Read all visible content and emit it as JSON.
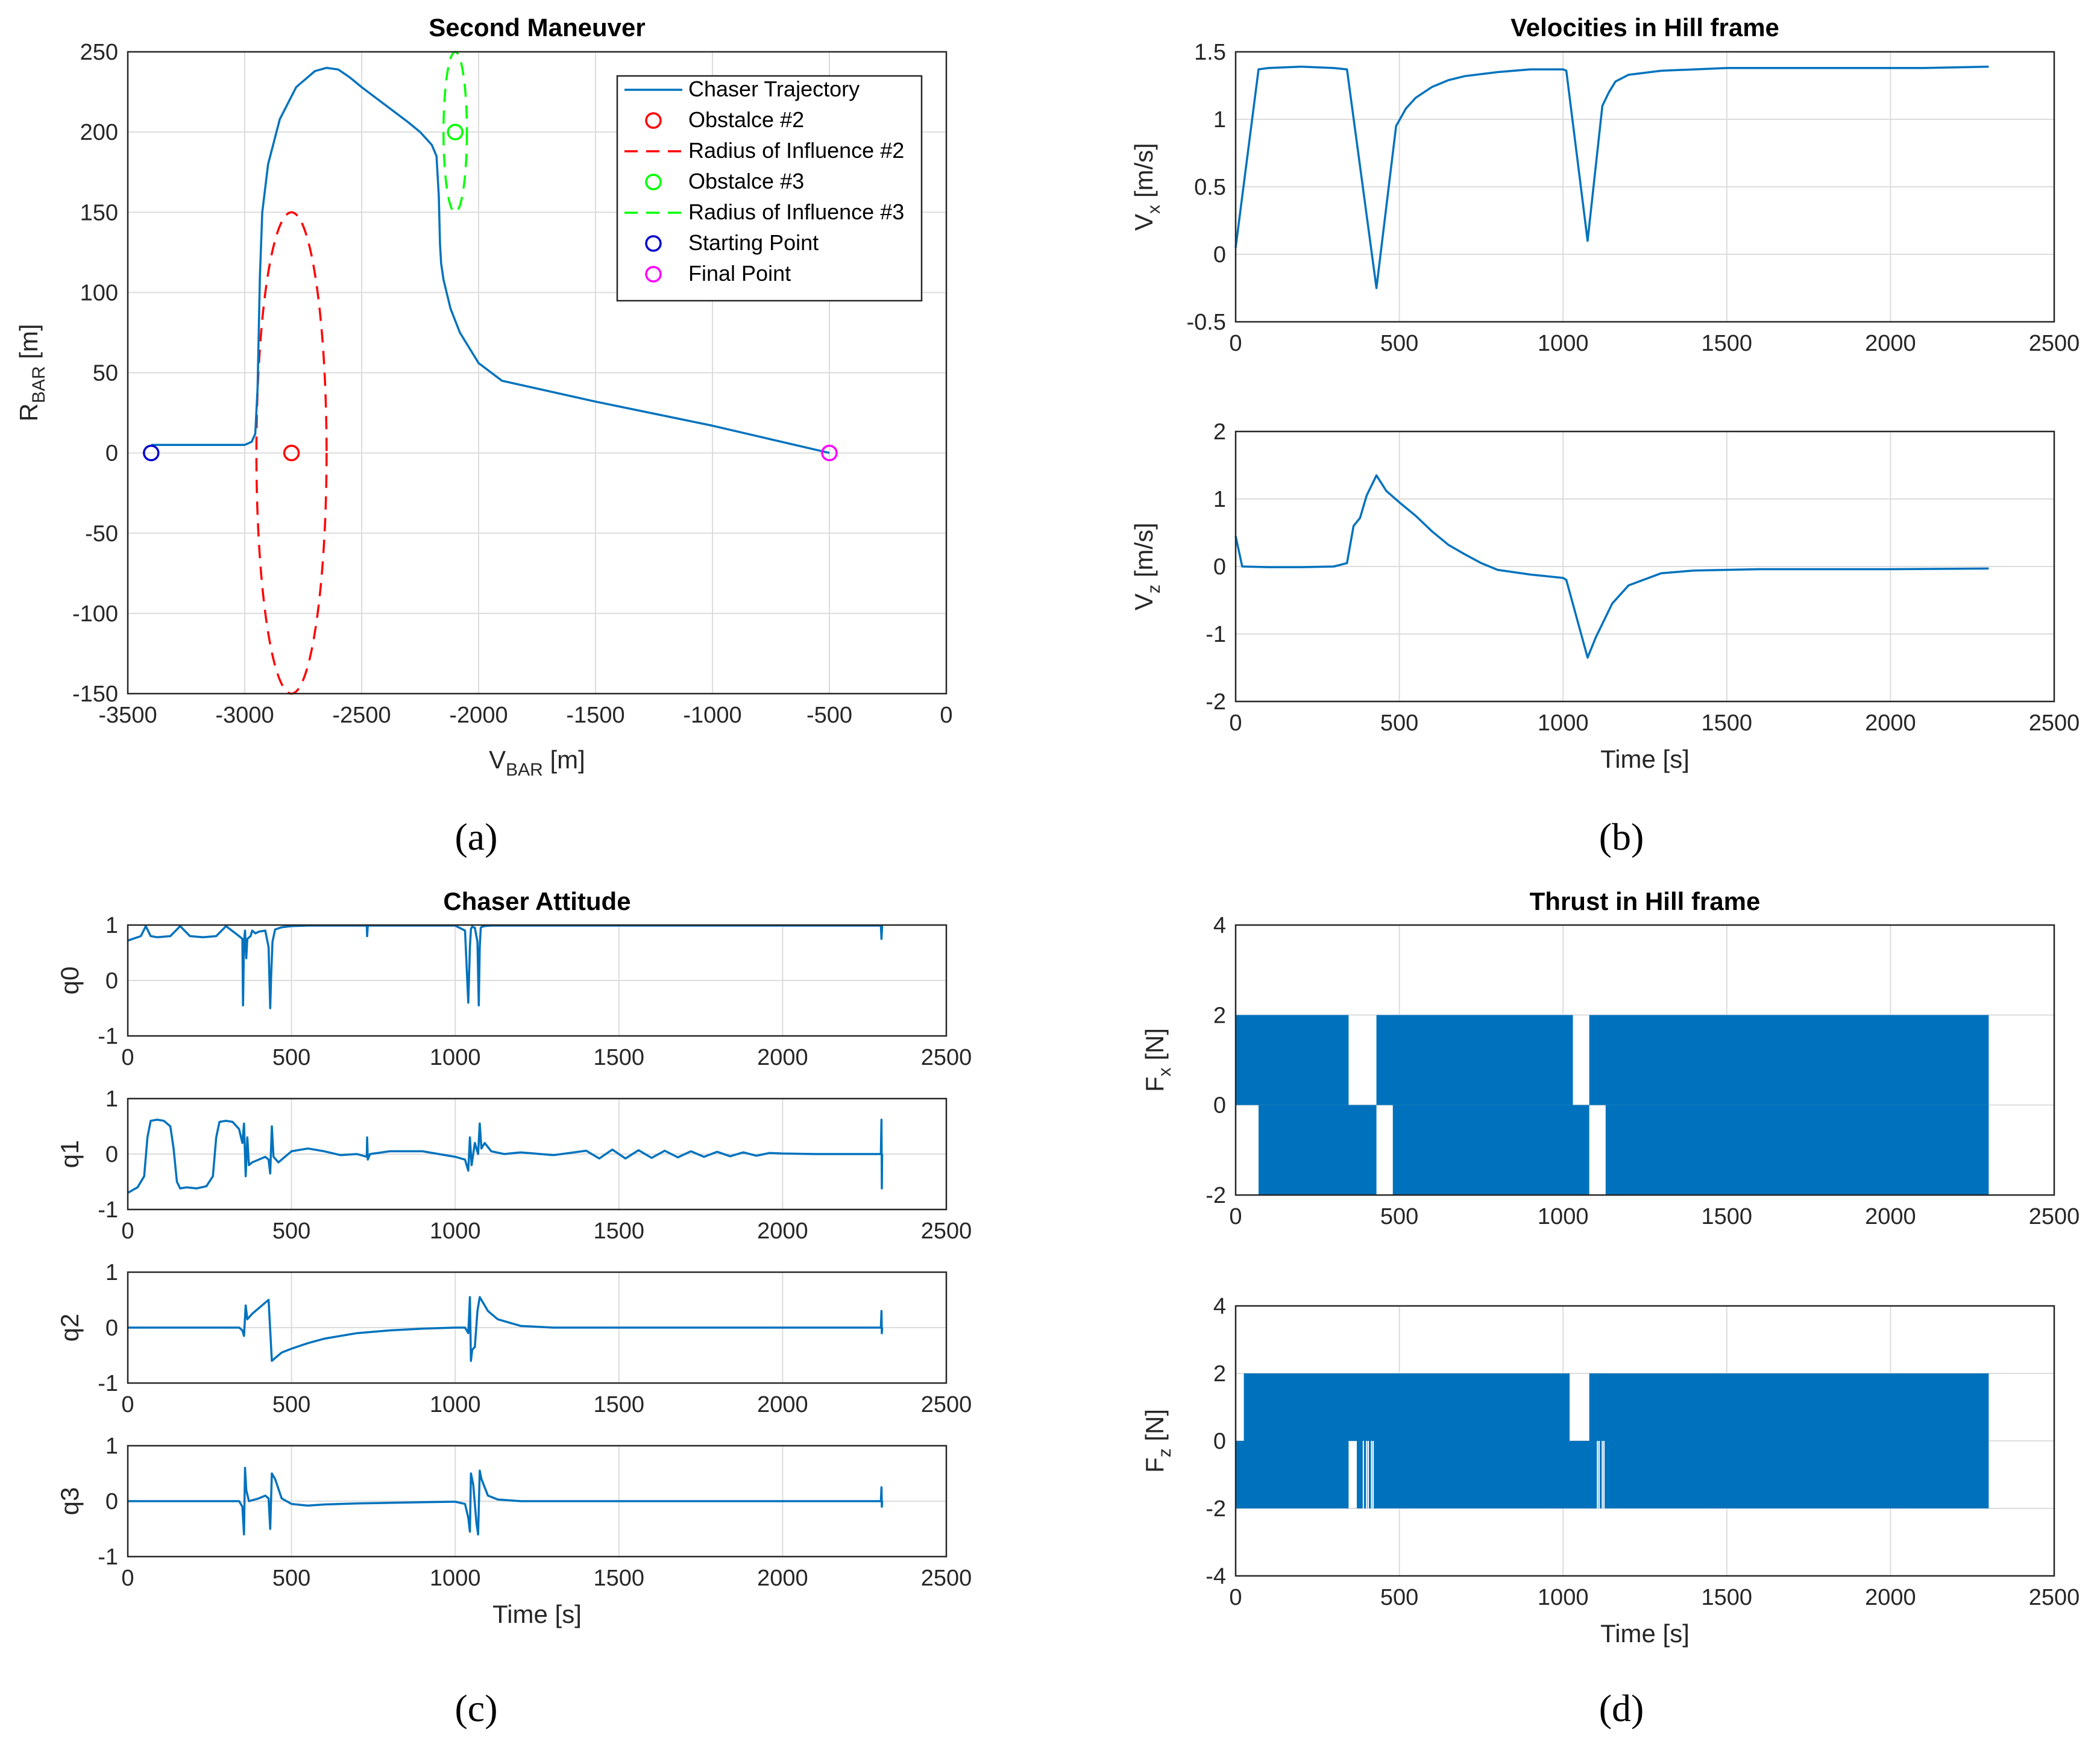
{
  "chart_data": [
    {
      "id": "a",
      "type": "line",
      "panel_label": "(a)",
      "title": "Second Maneuver",
      "xlabel": {
        "base": "V",
        "sub": "BAR",
        "unit": " [m]"
      },
      "ylabel": {
        "base": "R",
        "sub": "BAR",
        "unit": " [m]"
      },
      "xlim": [
        -3500,
        0
      ],
      "ylim": [
        -150,
        250
      ],
      "xticks": [
        -3500,
        -3000,
        -2500,
        -2000,
        -1500,
        -1000,
        -500,
        0
      ],
      "yticks": [
        -150,
        -100,
        -50,
        0,
        50,
        100,
        150,
        200,
        250
      ],
      "grid": true,
      "legend_placement": "top-right",
      "legend": [
        {
          "label": "Chaser Trajectory",
          "style": "line",
          "color": "#0072BD"
        },
        {
          "label": "Obstalce #2",
          "style": "circle",
          "color": "#FF0000"
        },
        {
          "label": "Radius of Influence #2",
          "style": "dash",
          "color": "#FF0000"
        },
        {
          "label": "Obstalce #3",
          "style": "circle",
          "color": "#00FF00"
        },
        {
          "label": "Radius of Influence #3",
          "style": "dash",
          "color": "#00FF00"
        },
        {
          "label": "Starting Point",
          "style": "circle",
          "color": "#0000CC"
        },
        {
          "label": "Final Point",
          "style": "circle",
          "color": "#FF00FF"
        }
      ],
      "trajectory": {
        "x": [
          -3400,
          -3200,
          -3000,
          -2970,
          -2955,
          -2945,
          -2935,
          -2925,
          -2900,
          -2850,
          -2780,
          -2700,
          -2650,
          -2600,
          -2550,
          -2500,
          -2400,
          -2300,
          -2250,
          -2200,
          -2180,
          -2170,
          -2165,
          -2160,
          -2150,
          -2120,
          -2080,
          -2000,
          -1900,
          -1500,
          -1000,
          -500
        ],
        "y": [
          5,
          5,
          5,
          7,
          12,
          40,
          110,
          150,
          180,
          208,
          228,
          238,
          240,
          239,
          234,
          228,
          217,
          206,
          200,
          192,
          185,
          160,
          130,
          118,
          108,
          90,
          75,
          56,
          45,
          32,
          17,
          0
        ]
      },
      "obstacles": [
        {
          "cx": -2800,
          "cy": 0,
          "rx": 150,
          "ry": 150,
          "color": "#FF0000"
        },
        {
          "cx": -2100,
          "cy": 200,
          "rx": 50,
          "ry": 50,
          "color": "#00FF00"
        }
      ],
      "start_point": {
        "x": -3400,
        "y": 0,
        "color": "#0000CC"
      },
      "final_point": {
        "x": -500,
        "y": 0,
        "color": "#FF00FF"
      }
    },
    {
      "id": "b",
      "type": "line",
      "panel_label": "(b)",
      "title": "Velocities in Hill frame",
      "subplots": [
        {
          "ylabel": {
            "base": "V",
            "sub": "x",
            "unit": " [m/s]"
          },
          "xlim": [
            0,
            2500
          ],
          "ylim": [
            -0.5,
            1.5
          ],
          "xticks": [
            0,
            500,
            1000,
            1500,
            2000,
            2500
          ],
          "yticks": [
            -0.5,
            0,
            0.5,
            1,
            1.5
          ],
          "x": [
            0,
            70,
            100,
            200,
            300,
            340,
            430,
            490,
            520,
            550,
            600,
            650,
            700,
            800,
            900,
            1000,
            1010,
            1075,
            1120,
            1140,
            1160,
            1200,
            1300,
            1500,
            1800,
            2100,
            2300
          ],
          "y": [
            0.05,
            1.37,
            1.38,
            1.39,
            1.38,
            1.37,
            -0.25,
            0.95,
            1.08,
            1.16,
            1.24,
            1.29,
            1.32,
            1.35,
            1.37,
            1.37,
            1.36,
            0.1,
            1.1,
            1.2,
            1.28,
            1.33,
            1.36,
            1.38,
            1.38,
            1.38,
            1.39
          ]
        },
        {
          "ylabel": {
            "base": "V",
            "sub": "z",
            "unit": " [m/s]"
          },
          "xlim": [
            0,
            2500
          ],
          "ylim": [
            -2,
            2
          ],
          "xticks": [
            0,
            500,
            1000,
            1500,
            2000,
            2500
          ],
          "yticks": [
            -2,
            -1,
            0,
            1,
            2
          ],
          "xlabel": "Time [s]",
          "x": [
            0,
            20,
            100,
            200,
            300,
            340,
            360,
            380,
            400,
            430,
            460,
            500,
            550,
            600,
            650,
            700,
            750,
            800,
            900,
            1000,
            1010,
            1075,
            1100,
            1150,
            1200,
            1300,
            1400,
            1600,
            2000,
            2300
          ],
          "y": [
            0.45,
            0,
            -0.01,
            -0.01,
            0,
            0.05,
            0.6,
            0.72,
            1.05,
            1.35,
            1.12,
            0.95,
            0.75,
            0.52,
            0.32,
            0.18,
            0.05,
            -0.05,
            -0.12,
            -0.17,
            -0.2,
            -1.35,
            -1.05,
            -0.55,
            -0.28,
            -0.1,
            -0.06,
            -0.04,
            -0.04,
            -0.03
          ]
        }
      ]
    },
    {
      "id": "c",
      "type": "line",
      "panel_label": "(c)",
      "title": "Chaser Attitude",
      "xlabel": "Time [s]",
      "subplots": [
        {
          "ylabel": "q0",
          "xlim": [
            0,
            2500
          ],
          "ylim": [
            -1,
            1
          ],
          "xticks": [
            0,
            500,
            1000,
            1500,
            2000,
            2500
          ],
          "yticks": [
            -1,
            0,
            1
          ],
          "x": [
            0,
            40,
            55,
            70,
            90,
            130,
            160,
            190,
            230,
            270,
            300,
            340,
            350,
            352,
            355,
            358,
            362,
            365,
            375,
            380,
            390,
            400,
            420,
            430,
            435,
            438,
            442,
            450,
            470,
            500,
            550,
            600,
            700,
            730,
            731,
            733,
            740,
            800,
            900,
            1000,
            1030,
            1040,
            1045,
            1048,
            1052,
            1060,
            1068,
            1072,
            1075,
            1078,
            1082,
            1090,
            1110,
            1200,
            1500,
            2000,
            2300,
            2302,
            2304
          ],
          "y": [
            0.72,
            0.8,
            0.98,
            0.8,
            0.78,
            0.8,
            0.98,
            0.8,
            0.78,
            0.8,
            0.98,
            0.8,
            0.75,
            -0.45,
            0.7,
            0.9,
            0.4,
            0.75,
            0.8,
            0.9,
            0.85,
            0.88,
            0.9,
            0.6,
            -0.5,
            0.1,
            0.7,
            0.92,
            0.96,
            0.98,
            0.99,
            0.99,
            0.99,
            0.99,
            0.8,
            0.99,
            0.99,
            0.99,
            0.99,
            0.99,
            0.9,
            -0.4,
            0.6,
            0.93,
            0.97,
            0.95,
            0.7,
            -0.45,
            0.6,
            0.95,
            0.97,
            0.98,
            0.99,
            0.99,
            0.99,
            0.99,
            0.99,
            0.75,
            0.99
          ]
        },
        {
          "ylabel": "q1",
          "xlim": [
            0,
            2500
          ],
          "ylim": [
            -1,
            1
          ],
          "xticks": [
            0,
            500,
            1000,
            1500,
            2000,
            2500
          ],
          "yticks": [
            -1,
            0,
            1
          ],
          "x": [
            0,
            30,
            50,
            60,
            70,
            90,
            110,
            130,
            140,
            150,
            160,
            180,
            210,
            240,
            260,
            270,
            280,
            300,
            320,
            340,
            350,
            355,
            360,
            365,
            370,
            380,
            400,
            420,
            430,
            435,
            440,
            445,
            460,
            500,
            550,
            600,
            650,
            700,
            730,
            731,
            733,
            740,
            800,
            900,
            950,
            1000,
            1030,
            1040,
            1045,
            1050,
            1060,
            1070,
            1075,
            1080,
            1090,
            1110,
            1150,
            1200,
            1300,
            1400,
            1440,
            1480,
            1520,
            1560,
            1600,
            1640,
            1680,
            1720,
            1760,
            1800,
            1840,
            1880,
            1920,
            1960,
            2000,
            2100,
            2300,
            2302,
            2303,
            2304
          ],
          "y": [
            -0.7,
            -0.6,
            -0.4,
            0.3,
            0.6,
            0.62,
            0.6,
            0.5,
            0.1,
            -0.5,
            -0.62,
            -0.6,
            -0.62,
            -0.58,
            -0.4,
            0.3,
            0.58,
            0.6,
            0.58,
            0.45,
            0.2,
            0.55,
            -0.4,
            0.3,
            -0.2,
            -0.15,
            -0.1,
            -0.05,
            -0.1,
            -0.35,
            0.5,
            -0.05,
            -0.15,
            0.05,
            0.1,
            0.05,
            -0.02,
            0.0,
            -0.05,
            0.3,
            -0.1,
            0.0,
            0.05,
            0.05,
            0.0,
            -0.05,
            -0.1,
            -0.3,
            0.3,
            -0.2,
            0.2,
            0.0,
            0.55,
            0.1,
            0.2,
            0.05,
            0.0,
            0.03,
            -0.02,
            0.06,
            -0.08,
            0.08,
            -0.08,
            0.07,
            -0.07,
            0.06,
            -0.06,
            0.05,
            -0.05,
            0.04,
            -0.04,
            0.03,
            -0.03,
            0.02,
            0.01,
            0.0,
            0.0,
            0.62,
            -0.62,
            0.0
          ]
        },
        {
          "ylabel": "q2",
          "xlim": [
            0,
            2500
          ],
          "ylim": [
            -1,
            1
          ],
          "xticks": [
            0,
            500,
            1000,
            1500,
            2000,
            2500
          ],
          "yticks": [
            -1,
            0,
            1
          ],
          "x": [
            0,
            200,
            300,
            340,
            350,
            355,
            360,
            365,
            380,
            400,
            420,
            430,
            440,
            450,
            470,
            500,
            550,
            600,
            700,
            800,
            900,
            1000,
            1030,
            1040,
            1045,
            1048,
            1052,
            1060,
            1068,
            1075,
            1085,
            1100,
            1130,
            1200,
            1300,
            1500,
            2000,
            2300,
            2302,
            2303,
            2304
          ],
          "y": [
            0,
            0,
            0,
            0,
            -0.05,
            -0.15,
            0.4,
            0.15,
            0.25,
            0.35,
            0.45,
            0.5,
            -0.6,
            -0.55,
            -0.45,
            -0.38,
            -0.28,
            -0.2,
            -0.1,
            -0.05,
            -0.02,
            0,
            0.0,
            -0.1,
            0.55,
            -0.6,
            -0.4,
            -0.35,
            0.3,
            0.55,
            0.45,
            0.3,
            0.15,
            0.03,
            0.0,
            0.0,
            0.0,
            0.0,
            0.3,
            -0.1,
            0.0
          ]
        },
        {
          "ylabel": "q3",
          "xlim": [
            0,
            2500
          ],
          "ylim": [
            -1,
            1
          ],
          "xticks": [
            0,
            500,
            1000,
            1500,
            2000,
            2500
          ],
          "yticks": [
            -1,
            0,
            1
          ],
          "x": [
            0,
            200,
            300,
            340,
            350,
            355,
            358,
            362,
            370,
            400,
            420,
            430,
            435,
            440,
            450,
            470,
            500,
            550,
            600,
            700,
            800,
            900,
            1000,
            1030,
            1040,
            1045,
            1048,
            1055,
            1065,
            1070,
            1075,
            1080,
            1100,
            1130,
            1200,
            1500,
            2000,
            2300,
            2302,
            2303,
            2304
          ],
          "y": [
            0,
            0,
            0,
            0,
            -0.1,
            -0.6,
            0.6,
            0.2,
            0.0,
            0.05,
            0.1,
            0.05,
            -0.5,
            0.5,
            0.4,
            0.05,
            -0.05,
            -0.08,
            -0.06,
            -0.04,
            -0.03,
            -0.02,
            -0.01,
            -0.05,
            -0.3,
            -0.55,
            0.5,
            0.3,
            -0.4,
            -0.6,
            0.55,
            0.4,
            0.1,
            0.03,
            0.0,
            0.0,
            0.0,
            0.0,
            0.25,
            -0.1,
            0.0
          ]
        }
      ]
    },
    {
      "id": "d",
      "type": "area",
      "panel_label": "(d)",
      "title": "Thrust in Hill frame",
      "subplots": [
        {
          "ylabel": {
            "base": "F",
            "sub": "x",
            "unit": " [N]"
          },
          "xlim": [
            0,
            2500
          ],
          "ylim": [
            -2,
            4
          ],
          "xticks": [
            0,
            500,
            1000,
            1500,
            2000,
            2500
          ],
          "yticks": [
            -2,
            0,
            2,
            4
          ],
          "upper_band": [
            [
              0,
              345
            ],
            [
              430,
              1030
            ],
            [
              1080,
              2300
            ]
          ],
          "lower_band": [
            [
              70,
              430
            ],
            [
              480,
              1080
            ],
            [
              1130,
              2300
            ]
          ],
          "lower_lines": []
        },
        {
          "ylabel": {
            "base": "F",
            "sub": "z",
            "unit": " [N]"
          },
          "xlim": [
            0,
            2500
          ],
          "ylim": [
            -4,
            4
          ],
          "xticks": [
            0,
            500,
            1000,
            1500,
            2000,
            2500
          ],
          "yticks": [
            -4,
            -2,
            0,
            2,
            4
          ],
          "xlabel": "Time [s]",
          "upper_band": [
            [
              25,
              1020
            ],
            [
              1080,
              2300
            ]
          ],
          "lower_band": [
            [
              0,
              345
            ],
            [
              370,
              2300
            ]
          ],
          "lower_lines": [
            390,
            400,
            405,
            415,
            420,
            1105,
            1110,
            1120,
            1125
          ]
        }
      ]
    }
  ]
}
